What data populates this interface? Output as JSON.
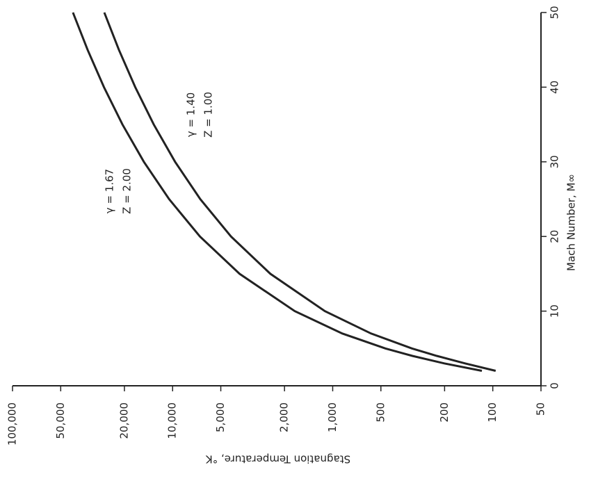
{
  "chart_data": {
    "type": "line",
    "x_label": "Mach Number, M∞",
    "y_label": "Stagnation Temperature, °K",
    "annotations": [
      "γ = 1.67",
      "Z = 2.00",
      "γ = 1.40",
      "Z = 1.00"
    ],
    "x": [
      2,
      3,
      4,
      5,
      7,
      10,
      15,
      20,
      25,
      30,
      35,
      40,
      45,
      50
    ],
    "series": [
      {
        "color": "#222222",
        "values": [
          117,
          201,
          318,
          469,
          871,
          1725,
          3819,
          6750,
          10519,
          15125,
          20569,
          26850,
          33969,
          41925
        ]
      },
      {
        "color": "#222222",
        "values": [
          96,
          149,
          224,
          320,
          576,
          1119,
          2452,
          4317,
          6716,
          9647,
          13112,
          17109,
          21640,
          26700
        ]
      }
    ],
    "xlim": [
      0,
      50
    ],
    "xticks": [
      0,
      10,
      20,
      30,
      40,
      50
    ],
    "ylim": [
      50,
      100000
    ],
    "log_y": true,
    "yticks": [
      50,
      100,
      200,
      500,
      {
        "value": 1000,
        "label": "1,000"
      },
      {
        "value": 2000,
        "label": "2,000"
      },
      {
        "value": 5000,
        "label": "5,000"
      },
      {
        "value": 10000,
        "label": "10,000"
      },
      {
        "value": 20000,
        "label": "20,000"
      },
      {
        "value": 50000,
        "label": "50,000"
      },
      {
        "value": 100000,
        "label": "100,000"
      }
    ],
    "grid": false
  }
}
